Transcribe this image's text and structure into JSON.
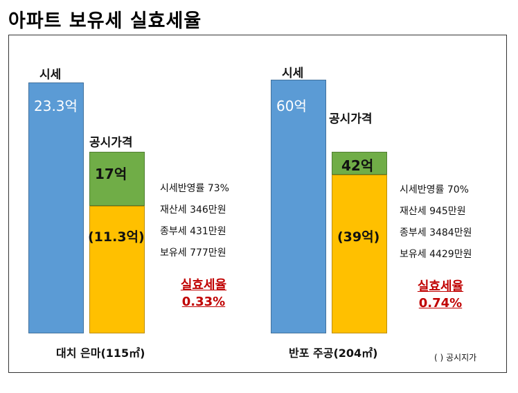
{
  "title": "아파트 보유세 실효세율",
  "colors": {
    "market": "#5b9bd5",
    "official_top": "#70ad47",
    "official_bottom": "#ffc000",
    "effective": "#c00000"
  },
  "footnote": "( ) 공시지가",
  "chart_data": {
    "type": "bar",
    "title": "아파트 보유세 실효세율",
    "unit": "억",
    "groups": [
      {
        "category": "대치 은마(115㎡)",
        "market_label": "시세",
        "market_value": 23.3,
        "market_text": "23.3억",
        "official_label": "공시가격",
        "official_value": 17,
        "official_text": "17억",
        "land_value": 11.3,
        "land_text": "(11.3억)",
        "info": [
          "시세반영률 73%",
          "재산세 346만원",
          "종부세 431만원",
          "보유세 777만원"
        ],
        "effective_label": "실효세율",
        "effective_value": "0.33%"
      },
      {
        "category": "반포 주공(204㎡)",
        "market_label": "시세",
        "market_value": 60,
        "market_text": "60억",
        "official_label": "공시가격",
        "official_value": 42,
        "official_text": "42억",
        "land_value": 39,
        "land_text": "(39억)",
        "info": [
          "시세반영률 70%",
          "재산세 945만원",
          "종부세 3484만원",
          "보유세 4429만원"
        ],
        "effective_label": "실효세율",
        "effective_value": "0.74%"
      }
    ]
  }
}
